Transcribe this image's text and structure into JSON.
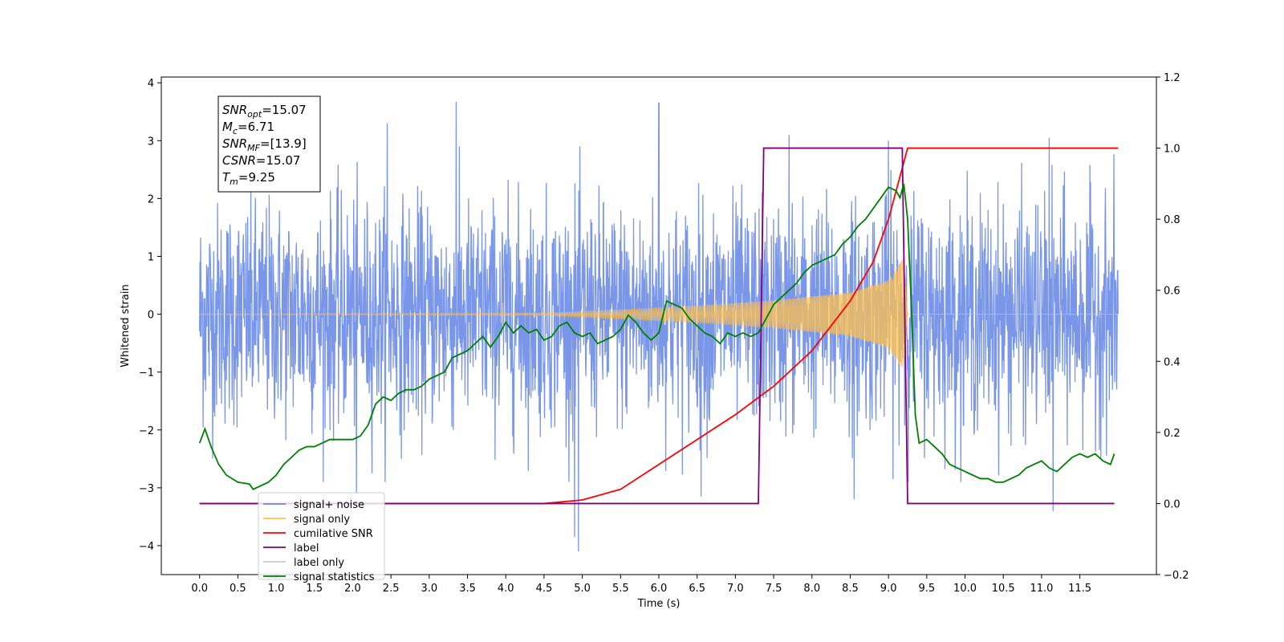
{
  "chart_data": {
    "type": "line",
    "xlabel": "Time (s)",
    "ylabel": "Whitened strain",
    "xlim": [
      -0.5,
      12.5
    ],
    "ylim": [
      -4.5,
      4.1
    ],
    "y2lim": [
      -0.2,
      1.2
    ],
    "x_ticks": [
      "0.0",
      "0.5",
      "1.0",
      "1.5",
      "2.0",
      "2.5",
      "3.0",
      "3.5",
      "4.0",
      "4.5",
      "5.0",
      "5.5",
      "6.0",
      "6.5",
      "7.0",
      "7.5",
      "8.0",
      "8.5",
      "9.0",
      "9.5",
      "10.0",
      "10.5",
      "11.0",
      "11.5"
    ],
    "x_tick_values": [
      0.0,
      0.5,
      1.0,
      1.5,
      2.0,
      2.5,
      3.0,
      3.5,
      4.0,
      4.5,
      5.0,
      5.5,
      6.0,
      6.5,
      7.0,
      7.5,
      8.0,
      8.5,
      9.0,
      9.5,
      10.0,
      10.5,
      11.0,
      11.5
    ],
    "y_ticks": [
      "4",
      "3",
      "2",
      "1",
      "0",
      "−1",
      "−2",
      "−3",
      "−4"
    ],
    "y_tick_values": [
      4,
      3,
      2,
      1,
      0,
      -1,
      -2,
      -3,
      -4
    ],
    "y2_ticks": [
      "1.2",
      "1.0",
      "0.8",
      "0.6",
      "0.4",
      "0.2",
      "0.0",
      "−0.2"
    ],
    "y2_tick_values": [
      1.2,
      1.0,
      0.8,
      0.6,
      0.4,
      0.2,
      0.0,
      -0.2
    ],
    "annotation": {
      "lines": [
        {
          "var": "SNR",
          "sub": "opt",
          "value": "=15.07"
        },
        {
          "var": "M",
          "sub": "c",
          "value": "=6.71"
        },
        {
          "var": "SNR",
          "sub": "MF",
          "value": "=[13.9]"
        },
        {
          "var": "CSNR",
          "sub": "",
          "value": "=15.07"
        },
        {
          "var": "T",
          "sub": "m",
          "value": "=9.25"
        }
      ]
    },
    "legend": {
      "placement": "lower-left",
      "entries": [
        {
          "label": "signal+ noise",
          "color": "#6688e6"
        },
        {
          "label": "signal only",
          "color": "#ffc04d"
        },
        {
          "label": "cumilative SNR",
          "color": "#ff0000"
        },
        {
          "label": "label",
          "color": "#800080"
        },
        {
          "label": "label only",
          "color": "#cccccc"
        },
        {
          "label": "signal statistics",
          "color": "#007f00"
        }
      ]
    },
    "series": [
      {
        "name": "signal+ noise",
        "axis": "left",
        "color": "#6688e6",
        "kind": "noise",
        "x_range": [
          0.0,
          12.0
        ],
        "std": 0.95,
        "extreme_spikes": [
          [
            3.35,
            3.67
          ],
          [
            6.0,
            3.65
          ],
          [
            4.9,
            -3.85
          ],
          [
            4.95,
            -4.1
          ],
          [
            11.15,
            -3.4
          ],
          [
            2.05,
            -3.1
          ],
          [
            7.7,
            3.1
          ],
          [
            2.45,
            3.3
          ],
          [
            9.0,
            3.0
          ],
          [
            11.1,
            3.05
          ],
          [
            8.55,
            -3.2
          ],
          [
            6.55,
            -3.15
          ]
        ]
      },
      {
        "name": "signal only",
        "axis": "left",
        "color": "#ffc04d",
        "kind": "chirp",
        "x_range": [
          0.0,
          12.0
        ],
        "merger_time": 9.25,
        "amplitude_points": [
          [
            0.0,
            0.005
          ],
          [
            4.5,
            0.02
          ],
          [
            5.5,
            0.08
          ],
          [
            6.5,
            0.15
          ],
          [
            7.5,
            0.24
          ],
          [
            8.5,
            0.38
          ],
          [
            9.0,
            0.6
          ],
          [
            9.2,
            1.0
          ],
          [
            9.25,
            0.0
          ]
        ]
      },
      {
        "name": "cumilative SNR",
        "axis": "right",
        "color": "#ff0000",
        "x": [
          0.0,
          4.5,
          5.0,
          5.5,
          6.0,
          6.5,
          7.0,
          7.5,
          8.0,
          8.5,
          8.8,
          9.0,
          9.15,
          9.25,
          12.0
        ],
        "y": [
          0.0,
          0.0,
          0.01,
          0.04,
          0.11,
          0.18,
          0.25,
          0.33,
          0.43,
          0.57,
          0.68,
          0.8,
          0.92,
          1.0,
          1.0
        ]
      },
      {
        "name": "label",
        "axis": "right",
        "color": "#800080",
        "x": [
          0.0,
          7.3,
          7.37,
          9.18,
          9.25,
          11.95
        ],
        "y": [
          0.0,
          0.0,
          1.0,
          1.0,
          0.0,
          0.0
        ]
      },
      {
        "name": "signal statistics",
        "axis": "right",
        "color": "#007f00",
        "x": [
          0.0,
          0.07,
          0.15,
          0.25,
          0.35,
          0.5,
          0.65,
          0.7,
          0.8,
          0.9,
          1.0,
          1.1,
          1.2,
          1.3,
          1.4,
          1.5,
          1.6,
          1.7,
          1.8,
          1.9,
          2.0,
          2.1,
          2.2,
          2.3,
          2.4,
          2.5,
          2.6,
          2.7,
          2.8,
          2.9,
          3.0,
          3.1,
          3.2,
          3.3,
          3.4,
          3.5,
          3.6,
          3.7,
          3.8,
          3.9,
          4.0,
          4.1,
          4.2,
          4.3,
          4.4,
          4.5,
          4.6,
          4.7,
          4.8,
          4.9,
          5.0,
          5.1,
          5.2,
          5.3,
          5.4,
          5.5,
          5.6,
          5.7,
          5.8,
          5.9,
          6.0,
          6.1,
          6.2,
          6.3,
          6.4,
          6.5,
          6.6,
          6.7,
          6.8,
          6.9,
          7.0,
          7.1,
          7.2,
          7.3,
          7.4,
          7.5,
          7.6,
          7.7,
          7.8,
          7.9,
          8.0,
          8.1,
          8.2,
          8.3,
          8.4,
          8.5,
          8.6,
          8.7,
          8.8,
          8.9,
          9.0,
          9.1,
          9.15,
          9.2,
          9.25,
          9.3,
          9.35,
          9.4,
          9.5,
          9.6,
          9.7,
          9.8,
          9.9,
          10.0,
          10.1,
          10.2,
          10.3,
          10.4,
          10.5,
          10.6,
          10.7,
          10.8,
          10.9,
          11.0,
          11.1,
          11.2,
          11.3,
          11.4,
          11.5,
          11.6,
          11.7,
          11.8,
          11.9,
          11.95
        ],
        "y": [
          0.17,
          0.21,
          0.16,
          0.11,
          0.08,
          0.06,
          0.055,
          0.04,
          0.05,
          0.06,
          0.08,
          0.11,
          0.13,
          0.15,
          0.16,
          0.16,
          0.17,
          0.18,
          0.18,
          0.18,
          0.18,
          0.19,
          0.22,
          0.28,
          0.3,
          0.29,
          0.31,
          0.32,
          0.32,
          0.33,
          0.35,
          0.36,
          0.37,
          0.41,
          0.42,
          0.43,
          0.45,
          0.47,
          0.44,
          0.47,
          0.51,
          0.48,
          0.5,
          0.48,
          0.49,
          0.46,
          0.47,
          0.5,
          0.51,
          0.48,
          0.47,
          0.48,
          0.45,
          0.46,
          0.47,
          0.49,
          0.53,
          0.51,
          0.48,
          0.46,
          0.48,
          0.57,
          0.56,
          0.55,
          0.52,
          0.5,
          0.48,
          0.47,
          0.45,
          0.48,
          0.47,
          0.48,
          0.47,
          0.48,
          0.52,
          0.56,
          0.58,
          0.6,
          0.62,
          0.65,
          0.67,
          0.68,
          0.69,
          0.7,
          0.73,
          0.75,
          0.78,
          0.8,
          0.83,
          0.86,
          0.89,
          0.88,
          0.86,
          0.9,
          0.8,
          0.55,
          0.25,
          0.17,
          0.18,
          0.16,
          0.14,
          0.11,
          0.1,
          0.09,
          0.08,
          0.07,
          0.07,
          0.06,
          0.06,
          0.07,
          0.08,
          0.1,
          0.11,
          0.12,
          0.1,
          0.09,
          0.11,
          0.13,
          0.14,
          0.13,
          0.14,
          0.12,
          0.11,
          0.14
        ]
      }
    ]
  }
}
